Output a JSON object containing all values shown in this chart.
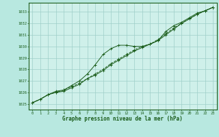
{
  "title": "Graphe pression niveau de la mer (hPa)",
  "bg_color": "#b8e8e0",
  "plot_bg": "#cff0ea",
  "grid_color": "#9ecec8",
  "line_color": "#1a5c1a",
  "xlim": [
    -0.5,
    23.5
  ],
  "ylim": [
    1024.5,
    1033.8
  ],
  "yticks": [
    1025,
    1026,
    1027,
    1028,
    1029,
    1030,
    1031,
    1032,
    1033
  ],
  "xticks": [
    0,
    1,
    2,
    3,
    4,
    5,
    6,
    7,
    8,
    9,
    10,
    11,
    12,
    13,
    14,
    15,
    16,
    17,
    18,
    19,
    20,
    21,
    22,
    23
  ],
  "series1": [
    [
      0,
      1025.1
    ],
    [
      1,
      1025.4
    ],
    [
      2,
      1025.8
    ],
    [
      3,
      1026.1
    ],
    [
      4,
      1026.2
    ],
    [
      5,
      1026.6
    ],
    [
      6,
      1027.0
    ],
    [
      7,
      1027.6
    ],
    [
      8,
      1028.4
    ],
    [
      9,
      1029.3
    ],
    [
      10,
      1029.8
    ],
    [
      11,
      1030.1
    ],
    [
      12,
      1030.1
    ],
    [
      13,
      1030.0
    ],
    [
      14,
      1030.0
    ],
    [
      15,
      1030.2
    ],
    [
      16,
      1030.5
    ],
    [
      17,
      1031.3
    ],
    [
      18,
      1031.8
    ],
    [
      19,
      1032.1
    ],
    [
      20,
      1032.5
    ],
    [
      21,
      1032.9
    ],
    [
      22,
      1033.1
    ],
    [
      23,
      1033.4
    ]
  ],
  "series2": [
    [
      0,
      1025.1
    ],
    [
      1,
      1025.4
    ],
    [
      2,
      1025.8
    ],
    [
      3,
      1026.0
    ],
    [
      4,
      1026.1
    ],
    [
      5,
      1026.4
    ],
    [
      6,
      1026.7
    ],
    [
      7,
      1027.2
    ],
    [
      8,
      1027.5
    ],
    [
      9,
      1027.9
    ],
    [
      10,
      1028.4
    ],
    [
      11,
      1028.8
    ],
    [
      12,
      1029.2
    ],
    [
      13,
      1029.6
    ],
    [
      14,
      1029.9
    ],
    [
      15,
      1030.2
    ],
    [
      16,
      1030.5
    ],
    [
      17,
      1031.0
    ],
    [
      18,
      1031.5
    ],
    [
      19,
      1032.0
    ],
    [
      20,
      1032.4
    ],
    [
      21,
      1032.8
    ],
    [
      22,
      1033.1
    ],
    [
      23,
      1033.4
    ]
  ],
  "series3": [
    [
      0,
      1025.1
    ],
    [
      1,
      1025.4
    ],
    [
      2,
      1025.8
    ],
    [
      3,
      1026.0
    ],
    [
      4,
      1026.2
    ],
    [
      5,
      1026.5
    ],
    [
      6,
      1026.8
    ],
    [
      7,
      1027.2
    ],
    [
      8,
      1027.6
    ],
    [
      9,
      1028.0
    ],
    [
      10,
      1028.5
    ],
    [
      11,
      1028.9
    ],
    [
      12,
      1029.3
    ],
    [
      13,
      1029.7
    ],
    [
      14,
      1030.0
    ],
    [
      15,
      1030.2
    ],
    [
      16,
      1030.6
    ],
    [
      17,
      1031.1
    ],
    [
      18,
      1031.6
    ],
    [
      19,
      1032.0
    ],
    [
      20,
      1032.4
    ],
    [
      21,
      1032.8
    ],
    [
      22,
      1033.1
    ],
    [
      23,
      1033.4
    ]
  ]
}
